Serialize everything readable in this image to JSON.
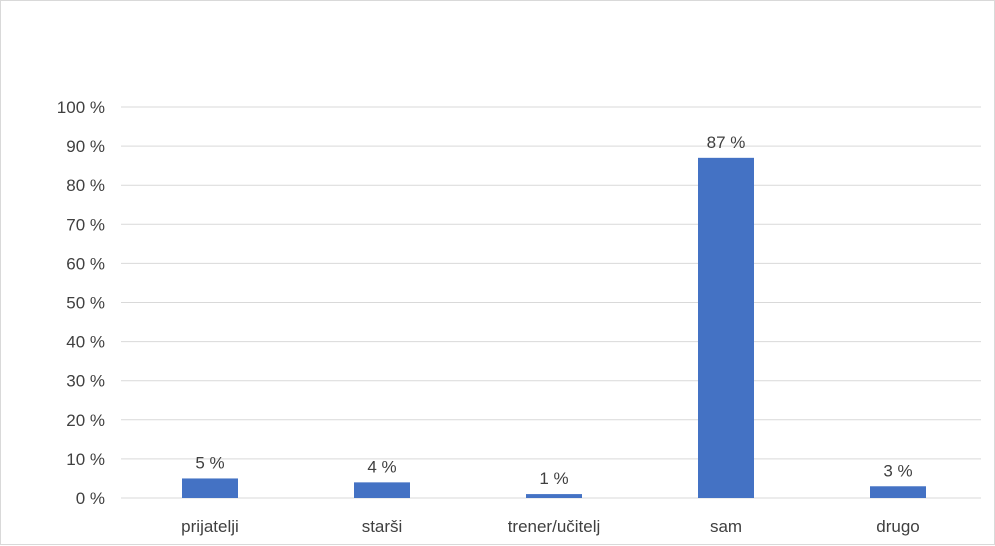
{
  "chart_data": {
    "type": "bar",
    "categories": [
      "prijatelji",
      "starši",
      "trener/učitelj",
      "sam",
      "drugo"
    ],
    "values": [
      5,
      4,
      1,
      87,
      3
    ],
    "data_labels": [
      "5 %",
      "4 %",
      "1 %",
      "87 %",
      "3 %"
    ],
    "title": "",
    "xlabel": "",
    "ylabel": "",
    "ylim": [
      0,
      100
    ],
    "y_ticks": [
      0,
      10,
      20,
      30,
      40,
      50,
      60,
      70,
      80,
      90,
      100
    ],
    "y_tick_labels": [
      "0 %",
      "10 %",
      "20 %",
      "30 %",
      "40 %",
      "50 %",
      "60 %",
      "70 %",
      "80 %",
      "90 %",
      "100 %"
    ],
    "grid": true,
    "legend": "none",
    "bar_color": "#4472c4",
    "grid_color": "#d9d9d9"
  }
}
